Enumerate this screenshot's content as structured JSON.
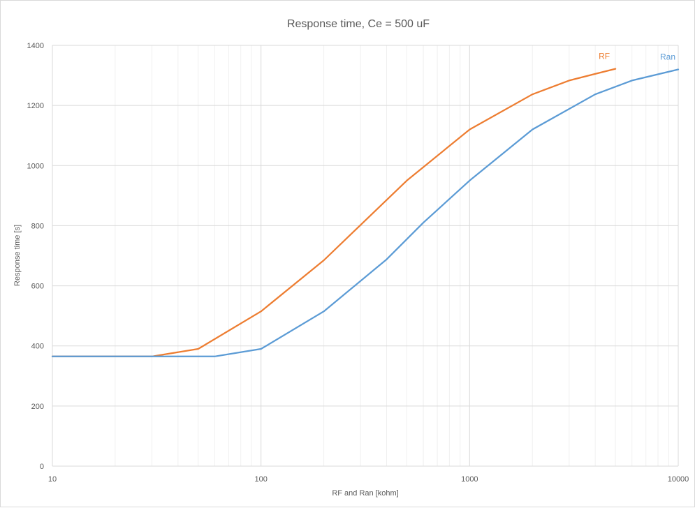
{
  "chart_data": {
    "type": "line",
    "title": "Response time, Ce = 500 uF",
    "xlabel": "RF and Ran [kohm]",
    "ylabel": "Response time [s]",
    "xscale": "log",
    "xlim": [
      10,
      10000
    ],
    "ylim": [
      0,
      1400
    ],
    "xticks": [
      "10",
      "100",
      "1000",
      "10000"
    ],
    "yticks": [
      "0",
      "200",
      "400",
      "600",
      "800",
      "1000",
      "1200",
      "1400"
    ],
    "grid": true,
    "legend": "none",
    "series": [
      {
        "name": "RF",
        "color": "#ED7D31",
        "x": [
          10,
          20,
          30,
          50,
          100,
          200,
          500,
          1000,
          2000,
          3000,
          4000,
          5000
        ],
        "y": [
          365,
          365,
          365,
          390,
          515,
          685,
          950,
          1120,
          1237,
          1283,
          1305,
          1322
        ]
      },
      {
        "name": "Ran",
        "color": "#5B9BD5",
        "x": [
          10,
          20,
          30,
          60,
          100,
          200,
          400,
          600,
          1000,
          2000,
          4000,
          6000,
          10000
        ],
        "y": [
          365,
          365,
          365,
          365,
          390,
          515,
          688,
          810,
          950,
          1120,
          1237,
          1283,
          1320
        ]
      }
    ]
  }
}
